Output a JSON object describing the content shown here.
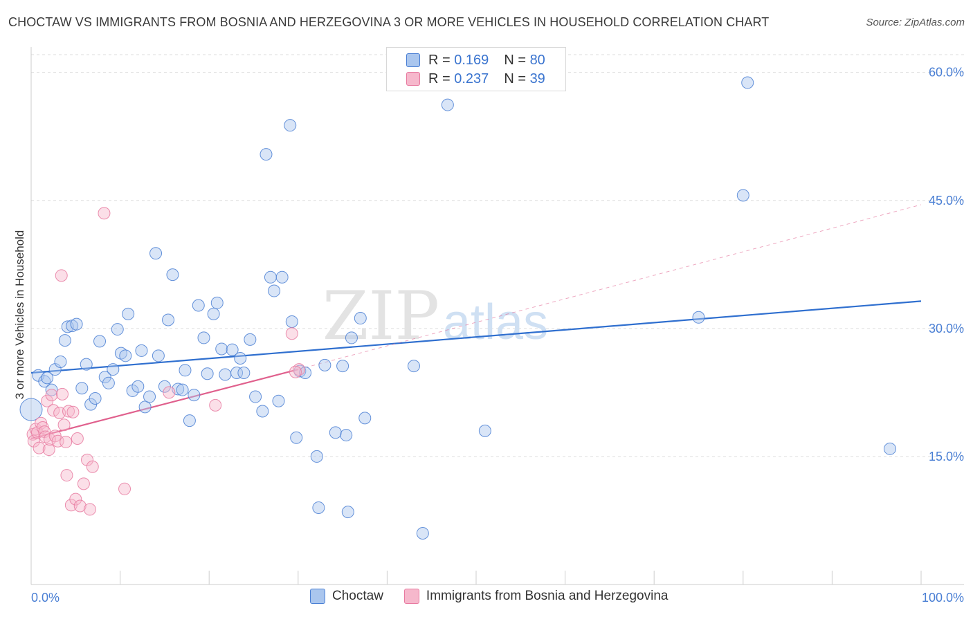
{
  "title": "CHOCTAW VS IMMIGRANTS FROM BOSNIA AND HERZEGOVINA 3 OR MORE VEHICLES IN HOUSEHOLD CORRELATION CHART",
  "source": "Source: ZipAtlas.com",
  "watermark": {
    "zip": "ZIP",
    "atlas": "atlas"
  },
  "legend": {
    "r_label": "R =",
    "n_label": "N =",
    "series": [
      {
        "name": "Choctaw",
        "r": "0.169",
        "n": "80"
      },
      {
        "name": "Immigrants from Bosnia and Herzegovina",
        "r": "0.237",
        "n": "39"
      }
    ]
  },
  "colors": {
    "blue": "#4a7fd4",
    "blue_fill": "#aac6ee",
    "blue_line": "#2f6fcf",
    "pink": "#e87aa0",
    "pink_fill": "#f6b8cc",
    "pink_line": "#e0608d"
  },
  "chart_data": {
    "type": "scatter",
    "title": "CHOCTAW VS IMMIGRANTS FROM BOSNIA AND HERZEGOVINA 3 OR MORE VEHICLES IN HOUSEHOLD CORRELATION CHART",
    "xlabel": "",
    "ylabel": "3 or more Vehicles in Household",
    "xlim": [
      0,
      100
    ],
    "ylim": [
      0,
      62
    ],
    "x_tick_labels": [
      "0.0%",
      "100.0%"
    ],
    "y_ticks": [
      15,
      30,
      45,
      60
    ],
    "y_tick_labels": [
      "15.0%",
      "30.0%",
      "45.0%",
      "60.0%"
    ],
    "series": [
      {
        "name": "Choctaw",
        "color": "#4a7fd4",
        "trend": {
          "x0": 0,
          "y0": 24.8,
          "x1": 100,
          "y1": 33.2,
          "dashed_to": null
        },
        "points": [
          [
            0.0,
            20.5
          ],
          [
            0.8,
            24.5
          ],
          [
            1.5,
            23.8
          ],
          [
            1.8,
            24.2
          ],
          [
            2.3,
            22.8
          ],
          [
            2.7,
            25.2
          ],
          [
            3.3,
            26.1
          ],
          [
            3.8,
            28.6
          ],
          [
            4.1,
            30.2
          ],
          [
            4.6,
            30.3
          ],
          [
            5.1,
            30.5
          ],
          [
            5.7,
            23.0
          ],
          [
            6.2,
            25.8
          ],
          [
            6.7,
            21.1
          ],
          [
            7.2,
            21.8
          ],
          [
            7.7,
            28.5
          ],
          [
            8.3,
            24.3
          ],
          [
            8.7,
            23.6
          ],
          [
            9.2,
            25.2
          ],
          [
            9.7,
            29.9
          ],
          [
            10.1,
            27.1
          ],
          [
            10.6,
            26.8
          ],
          [
            10.9,
            31.7
          ],
          [
            11.4,
            22.7
          ],
          [
            12.0,
            23.2
          ],
          [
            12.4,
            27.4
          ],
          [
            12.8,
            20.8
          ],
          [
            13.3,
            22.0
          ],
          [
            14.0,
            38.8
          ],
          [
            14.3,
            26.8
          ],
          [
            15.0,
            23.2
          ],
          [
            15.4,
            31.0
          ],
          [
            15.9,
            36.3
          ],
          [
            16.5,
            22.9
          ],
          [
            17.0,
            22.8
          ],
          [
            17.3,
            25.1
          ],
          [
            17.8,
            19.2
          ],
          [
            18.3,
            22.2
          ],
          [
            18.8,
            32.7
          ],
          [
            19.4,
            28.9
          ],
          [
            19.8,
            24.7
          ],
          [
            20.5,
            31.7
          ],
          [
            20.9,
            33.0
          ],
          [
            21.4,
            27.6
          ],
          [
            21.8,
            24.6
          ],
          [
            22.6,
            27.5
          ],
          [
            23.1,
            24.8
          ],
          [
            23.5,
            26.5
          ],
          [
            23.9,
            24.8
          ],
          [
            24.6,
            28.7
          ],
          [
            25.2,
            22.0
          ],
          [
            26.0,
            20.3
          ],
          [
            26.4,
            50.4
          ],
          [
            26.9,
            36.0
          ],
          [
            27.3,
            34.4
          ],
          [
            27.8,
            21.5
          ],
          [
            28.2,
            36.0
          ],
          [
            29.1,
            53.8
          ],
          [
            29.3,
            30.8
          ],
          [
            29.8,
            17.2
          ],
          [
            30.2,
            25.0
          ],
          [
            30.8,
            24.8
          ],
          [
            32.1,
            15.0
          ],
          [
            32.3,
            9.0
          ],
          [
            33.0,
            25.7
          ],
          [
            34.2,
            17.8
          ],
          [
            35.0,
            25.6
          ],
          [
            35.4,
            17.5
          ],
          [
            35.6,
            8.5
          ],
          [
            36.0,
            28.9
          ],
          [
            37.0,
            31.2
          ],
          [
            37.5,
            19.5
          ],
          [
            43.0,
            25.6
          ],
          [
            44.0,
            6.0
          ],
          [
            46.8,
            56.2
          ],
          [
            51.0,
            18.0
          ],
          [
            75.0,
            31.3
          ],
          [
            80.0,
            45.6
          ],
          [
            80.5,
            58.8
          ],
          [
            96.5,
            15.9
          ]
        ]
      },
      {
        "name": "Immigrants from Bosnia and Herzegovina",
        "color": "#e87aa0",
        "trend": {
          "x0": 0,
          "y0": 17.1,
          "x1": 30,
          "y1": 25.2,
          "dashed_to": {
            "x": 100,
            "y": 44.5
          }
        },
        "points": [
          [
            0.2,
            17.6
          ],
          [
            0.3,
            16.8
          ],
          [
            0.5,
            18.2
          ],
          [
            0.7,
            17.8
          ],
          [
            0.9,
            16.0
          ],
          [
            1.1,
            18.9
          ],
          [
            1.3,
            18.4
          ],
          [
            1.5,
            17.9
          ],
          [
            1.6,
            17.3
          ],
          [
            1.8,
            21.5
          ],
          [
            2.0,
            15.8
          ],
          [
            2.1,
            17.0
          ],
          [
            2.3,
            22.2
          ],
          [
            2.5,
            20.4
          ],
          [
            2.7,
            17.4
          ],
          [
            3.0,
            16.8
          ],
          [
            3.2,
            20.1
          ],
          [
            3.4,
            36.2
          ],
          [
            3.5,
            22.3
          ],
          [
            3.7,
            18.7
          ],
          [
            3.9,
            16.7
          ],
          [
            4.0,
            12.8
          ],
          [
            4.2,
            20.3
          ],
          [
            4.5,
            9.3
          ],
          [
            4.7,
            20.2
          ],
          [
            5.0,
            10.0
          ],
          [
            5.2,
            17.1
          ],
          [
            5.5,
            9.2
          ],
          [
            5.9,
            11.8
          ],
          [
            6.3,
            14.6
          ],
          [
            6.6,
            8.8
          ],
          [
            6.9,
            13.8
          ],
          [
            8.2,
            43.5
          ],
          [
            10.5,
            11.2
          ],
          [
            15.5,
            22.5
          ],
          [
            20.7,
            21.0
          ],
          [
            29.3,
            29.4
          ],
          [
            30.1,
            25.2
          ],
          [
            29.7,
            24.9
          ]
        ]
      }
    ]
  }
}
